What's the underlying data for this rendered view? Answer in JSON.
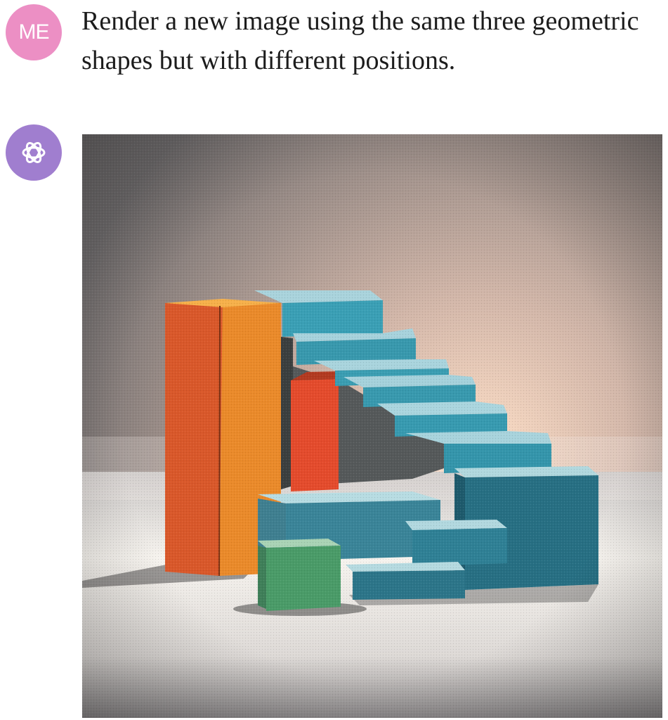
{
  "user": {
    "avatar_initials": "ME",
    "avatar_color": "#ec8fc4",
    "message": "Render a new image using the same three geometric shapes but with different positions."
  },
  "assistant": {
    "avatar_icon": "openai-logo-icon",
    "avatar_color": "#a07ecf",
    "image_subject": "generated-image"
  }
}
